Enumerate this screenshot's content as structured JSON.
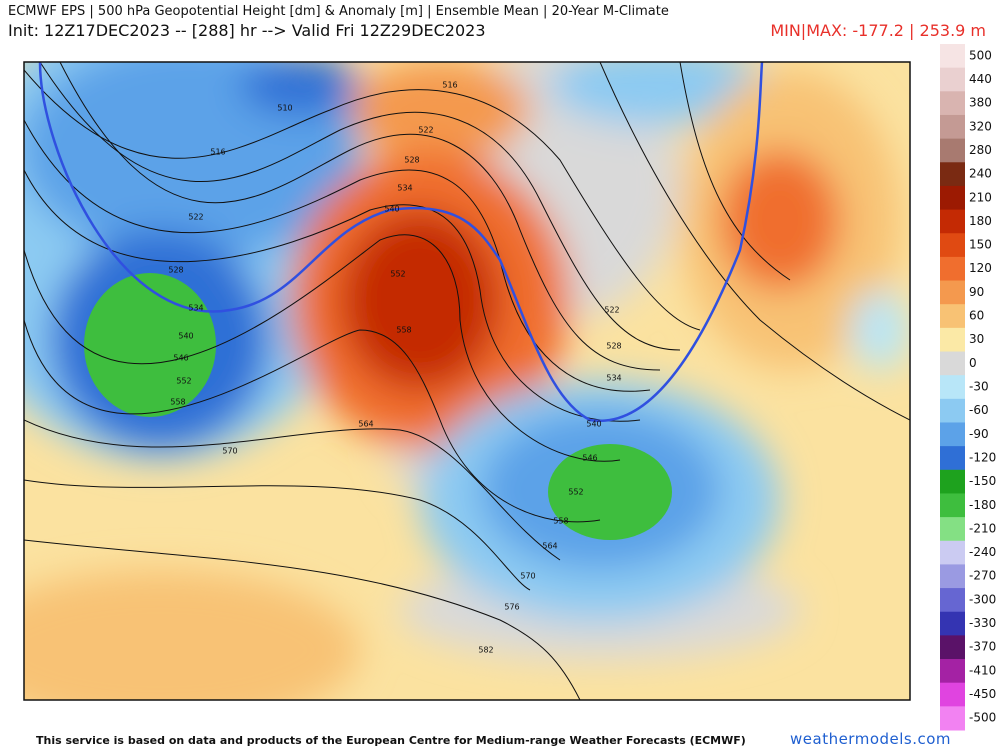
{
  "header": {
    "title": "ECMWF EPS | 500 hPa Geopotential Height [dm] & Anomaly [m] | Ensemble Mean | 20-Year M-Climate",
    "subtitle": "Init: 12Z17DEC2023 -- [288] hr --> Valid Fri 12Z29DEC2023",
    "min_max": "MIN|MAX: -177.2 | 253.9 m"
  },
  "colorbar": {
    "ticks": [
      500,
      440,
      380,
      320,
      280,
      240,
      210,
      180,
      150,
      120,
      90,
      60,
      30,
      0,
      -30,
      -60,
      -90,
      -120,
      -150,
      -180,
      -210,
      -240,
      -270,
      -300,
      -330,
      -370,
      -410,
      -450,
      -500
    ],
    "colors": [
      "#f6e4e4",
      "#ead0d0",
      "#d9b4b0",
      "#c49a94",
      "#a87a70",
      "#7a2a12",
      "#9c1a02",
      "#c42a04",
      "#e04a12",
      "#f06e2e",
      "#f4994e",
      "#f8c274",
      "#fbe9a6",
      "#d9d9d9",
      "#b8e6f8",
      "#8ccaf2",
      "#5ca2e8",
      "#2f6fd6",
      "#1ea21e",
      "#3ebe3e",
      "#84e084",
      "#cbcbf2",
      "#9a9ae2",
      "#6666d2",
      "#3434b2",
      "#5a1268",
      "#a422a4",
      "#e044e0",
      "#f282f2"
    ]
  },
  "contour_labels": [
    510,
    516,
    522,
    528,
    534,
    540,
    546,
    552,
    558,
    570,
    516,
    522,
    528,
    534,
    540,
    552,
    558,
    564,
    522,
    528,
    534,
    540,
    546,
    552,
    558,
    564,
    570,
    576,
    582
  ],
  "footer": {
    "notice": "This service is based on data and products of the European Centre for Medium-range Weather Forecasts (ECMWF)",
    "site": "weathermodels.com"
  }
}
